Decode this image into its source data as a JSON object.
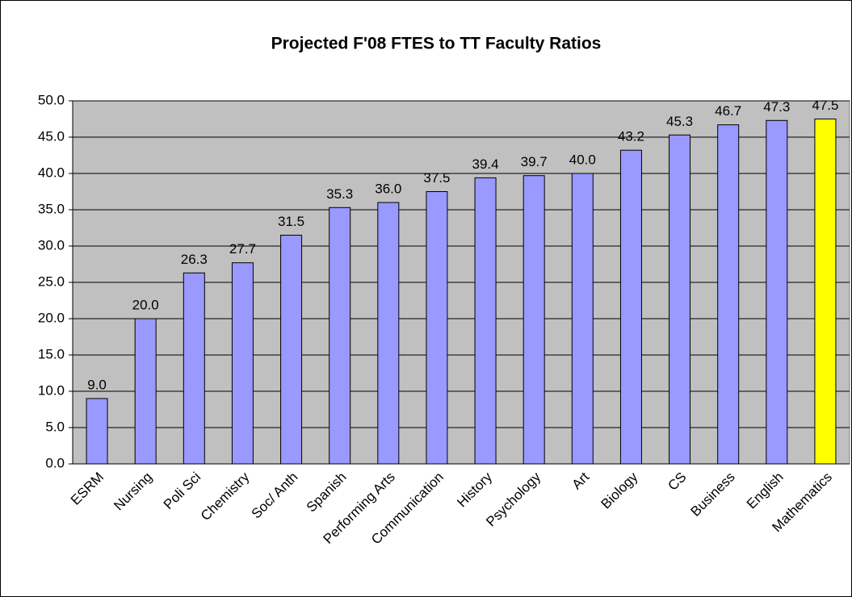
{
  "chart_data": {
    "type": "bar",
    "title": "Projected F'08 FTES to TT Faculty Ratios",
    "categories": [
      "ESRM",
      "Nursing",
      "Poli Sci",
      "Chemistry",
      "Soc/ Anth",
      "Spanish",
      "Performing Arts",
      "Communication",
      "History",
      "Psychology",
      "Art",
      "Biology",
      "CS",
      "Business",
      "English",
      "Mathematics"
    ],
    "values": [
      9.0,
      20.0,
      26.3,
      27.7,
      31.5,
      35.3,
      36.0,
      37.5,
      39.4,
      39.7,
      40.0,
      43.2,
      45.3,
      46.7,
      47.3,
      47.5
    ],
    "value_labels": [
      "9.0",
      "20.0",
      "26.3",
      "27.7",
      "31.5",
      "35.3",
      "36.0",
      "37.5",
      "39.4",
      "39.7",
      "40.0",
      "43.2",
      "45.3",
      "46.7",
      "47.3",
      "47.5"
    ],
    "colors": [
      "#9999ff",
      "#9999ff",
      "#9999ff",
      "#9999ff",
      "#9999ff",
      "#9999ff",
      "#9999ff",
      "#9999ff",
      "#9999ff",
      "#9999ff",
      "#9999ff",
      "#9999ff",
      "#9999ff",
      "#9999ff",
      "#9999ff",
      "#ffff00"
    ],
    "ylim": [
      0,
      50
    ],
    "yticks": [
      {
        "value": 0,
        "label": "0.0"
      },
      {
        "value": 5,
        "label": "5.0"
      },
      {
        "value": 10,
        "label": "10.0"
      },
      {
        "value": 15,
        "label": "15.0"
      },
      {
        "value": 20,
        "label": "20.0"
      },
      {
        "value": 25,
        "label": "25.0"
      },
      {
        "value": 30,
        "label": "30.0"
      },
      {
        "value": 35,
        "label": "35.0"
      },
      {
        "value": 40,
        "label": "40.0"
      },
      {
        "value": 45,
        "label": "45.0"
      },
      {
        "value": 50,
        "label": "50.0"
      }
    ],
    "grid": true
  }
}
